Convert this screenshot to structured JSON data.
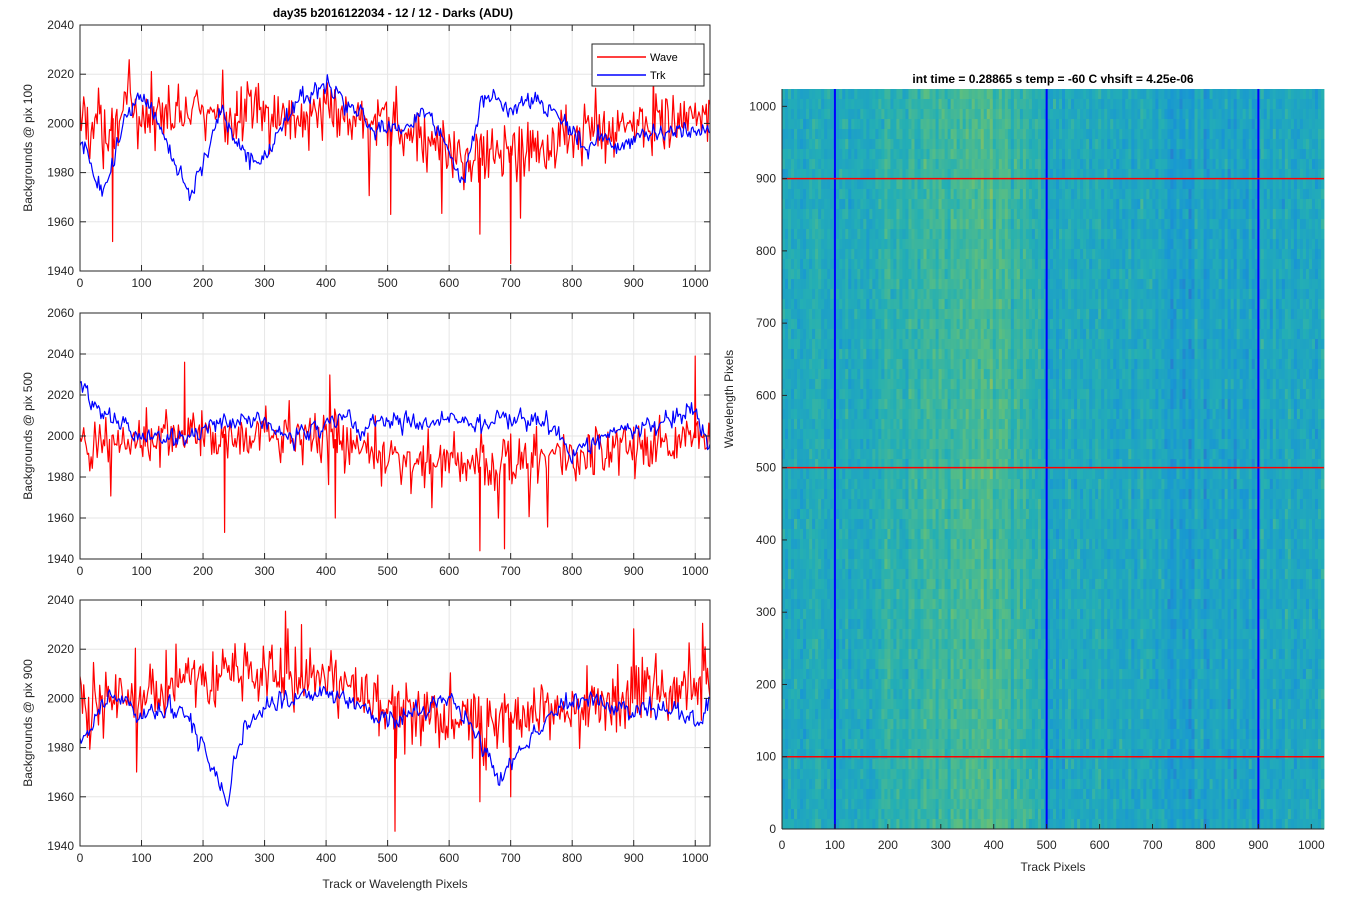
{
  "figure": {
    "left_title": "day35 b2016122034 - 12 / 12 - Darks (ADU)",
    "right_title": "int time = 0.28865 s    temp = -60 C    vhsift = 4.25e-06",
    "colors": {
      "wave": "#ff0000",
      "trk": "#0000ff",
      "grid": "#e6e6e6",
      "axis": "#262626"
    }
  },
  "chart_data": [
    {
      "type": "line",
      "title": "day35 b2016122034 - 12 / 12 - Darks (ADU)",
      "xlabel": "",
      "ylabel": "Backgrounds @ pix 100",
      "xlim": [
        0,
        1024
      ],
      "ylim": [
        1940,
        2040
      ],
      "xticks": [
        0,
        100,
        200,
        300,
        400,
        500,
        600,
        700,
        800,
        900,
        1000
      ],
      "yticks": [
        1940,
        1960,
        1980,
        2000,
        2020,
        2040
      ],
      "grid": true,
      "legend": "top-right",
      "series": [
        {
          "name": "Wave",
          "x": [
            0,
            50,
            100,
            150,
            200,
            250,
            300,
            350,
            400,
            450,
            500,
            550,
            600,
            650,
            700,
            750,
            800,
            850,
            900,
            950,
            1000,
            1024
          ],
          "values": [
            2000,
            2002,
            2003,
            2004,
            2004,
            2003,
            2003,
            2003,
            2004,
            2002,
            1998,
            1993,
            1988,
            1986,
            1988,
            1993,
            1995,
            1997,
            1999,
            2001,
            2002,
            2003
          ]
        },
        {
          "name": "Trk",
          "x": [
            0,
            20,
            40,
            60,
            80,
            100,
            130,
            160,
            180,
            200,
            230,
            260,
            290,
            320,
            360,
            400,
            430,
            460,
            490,
            530,
            560,
            590,
            620,
            650,
            680,
            700,
            730,
            760,
            790,
            820,
            850,
            880,
            920,
            960,
            1000,
            1024
          ],
          "values": [
            1993,
            1982,
            1972,
            1990,
            2005,
            2010,
            2000,
            1980,
            1972,
            1985,
            2005,
            1990,
            1982,
            1995,
            2010,
            2015,
            2008,
            2003,
            1997,
            1998,
            2005,
            1997,
            1975,
            2005,
            2013,
            2005,
            2010,
            2008,
            2000,
            1990,
            1995,
            1990,
            1996,
            1997,
            1998,
            1996
          ]
        }
      ]
    },
    {
      "type": "line",
      "title": "",
      "xlabel": "",
      "ylabel": "Backgrounds @ pix 500",
      "xlim": [
        0,
        1024
      ],
      "ylim": [
        1940,
        2060
      ],
      "xticks": [
        0,
        100,
        200,
        300,
        400,
        500,
        600,
        700,
        800,
        900,
        1000
      ],
      "yticks": [
        1940,
        1960,
        1980,
        2000,
        2020,
        2040,
        2060
      ],
      "grid": true,
      "series": [
        {
          "name": "Wave",
          "x": [
            0,
            50,
            100,
            150,
            200,
            250,
            300,
            350,
            400,
            450,
            500,
            550,
            600,
            650,
            700,
            750,
            800,
            850,
            900,
            950,
            1000,
            1024
          ],
          "values": [
            1995,
            1997,
            1999,
            2000,
            2001,
            2001,
            2002,
            2002,
            2000,
            1995,
            1990,
            1988,
            1986,
            1985,
            1987,
            1989,
            1991,
            1993,
            1995,
            1997,
            1999,
            2001
          ]
        },
        {
          "name": "Trk",
          "x": [
            0,
            10,
            30,
            60,
            100,
            140,
            180,
            220,
            260,
            300,
            350,
            400,
            430,
            460,
            500,
            540,
            580,
            610,
            640,
            680,
            720,
            760,
            800,
            840,
            880,
            920,
            960,
            1000,
            1024
          ],
          "values": [
            2030,
            2022,
            2012,
            2006,
            2001,
            1998,
            2000,
            2006,
            2008,
            2006,
            1998,
            2006,
            2010,
            2002,
            2008,
            2006,
            2008,
            2012,
            2004,
            2009,
            2006,
            2008,
            1990,
            1998,
            2006,
            2002,
            2008,
            2012,
            1995
          ]
        }
      ]
    },
    {
      "type": "line",
      "title": "",
      "xlabel": "Track or Wavelength Pixels",
      "ylabel": "Backgrounds @ pix 900",
      "xlim": [
        0,
        1024
      ],
      "ylim": [
        1940,
        2040
      ],
      "xticks": [
        0,
        100,
        200,
        300,
        400,
        500,
        600,
        700,
        800,
        900,
        1000
      ],
      "yticks": [
        1940,
        1960,
        1980,
        2000,
        2020,
        2040
      ],
      "grid": true,
      "series": [
        {
          "name": "Wave",
          "x": [
            0,
            50,
            100,
            150,
            200,
            250,
            300,
            350,
            400,
            450,
            500,
            550,
            600,
            650,
            700,
            750,
            800,
            850,
            900,
            950,
            1000,
            1024
          ],
          "values": [
            1998,
            2002,
            2004,
            2005,
            2008,
            2010,
            2010,
            2009,
            2007,
            2004,
            1998,
            1993,
            1990,
            1990,
            1992,
            1996,
            1998,
            2000,
            2001,
            2002,
            2004,
            2004
          ]
        },
        {
          "name": "Trk",
          "x": [
            0,
            20,
            50,
            80,
            100,
            150,
            180,
            200,
            220,
            240,
            260,
            300,
            350,
            400,
            450,
            500,
            550,
            600,
            650,
            680,
            720,
            760,
            800,
            850,
            900,
            950,
            1000,
            1024
          ],
          "values": [
            1982,
            1990,
            2002,
            1998,
            1993,
            1995,
            1990,
            1980,
            1968,
            1958,
            1985,
            1997,
            2000,
            2002,
            1997,
            1990,
            1995,
            2000,
            1982,
            1968,
            1980,
            1992,
            2000,
            1998,
            1995,
            1997,
            1988,
            2000
          ]
        }
      ]
    },
    {
      "type": "heatmap",
      "title": "int time = 0.28865 s    temp = -60 C    vhsift = 4.25e-06",
      "xlabel": "Track Pixels",
      "ylabel": "Wavelength Pixels",
      "xlim": [
        0,
        1024
      ],
      "ylim": [
        0,
        1024
      ],
      "xticks": [
        0,
        100,
        200,
        300,
        400,
        500,
        600,
        700,
        800,
        900,
        1000
      ],
      "yticks": [
        0,
        100,
        200,
        300,
        400,
        500,
        600,
        700,
        800,
        900,
        1000
      ],
      "grid": false,
      "column_profile_x": [
        0,
        100,
        200,
        300,
        380,
        460,
        500,
        600,
        700,
        800,
        900,
        1024
      ],
      "column_profile_level": [
        0.45,
        0.42,
        0.5,
        0.6,
        0.68,
        0.55,
        0.42,
        0.4,
        0.42,
        0.36,
        0.38,
        0.44
      ],
      "marker_lines": {
        "vertical_blue": [
          100,
          500,
          900
        ],
        "horizontal_red": [
          100,
          500,
          900
        ]
      }
    }
  ]
}
